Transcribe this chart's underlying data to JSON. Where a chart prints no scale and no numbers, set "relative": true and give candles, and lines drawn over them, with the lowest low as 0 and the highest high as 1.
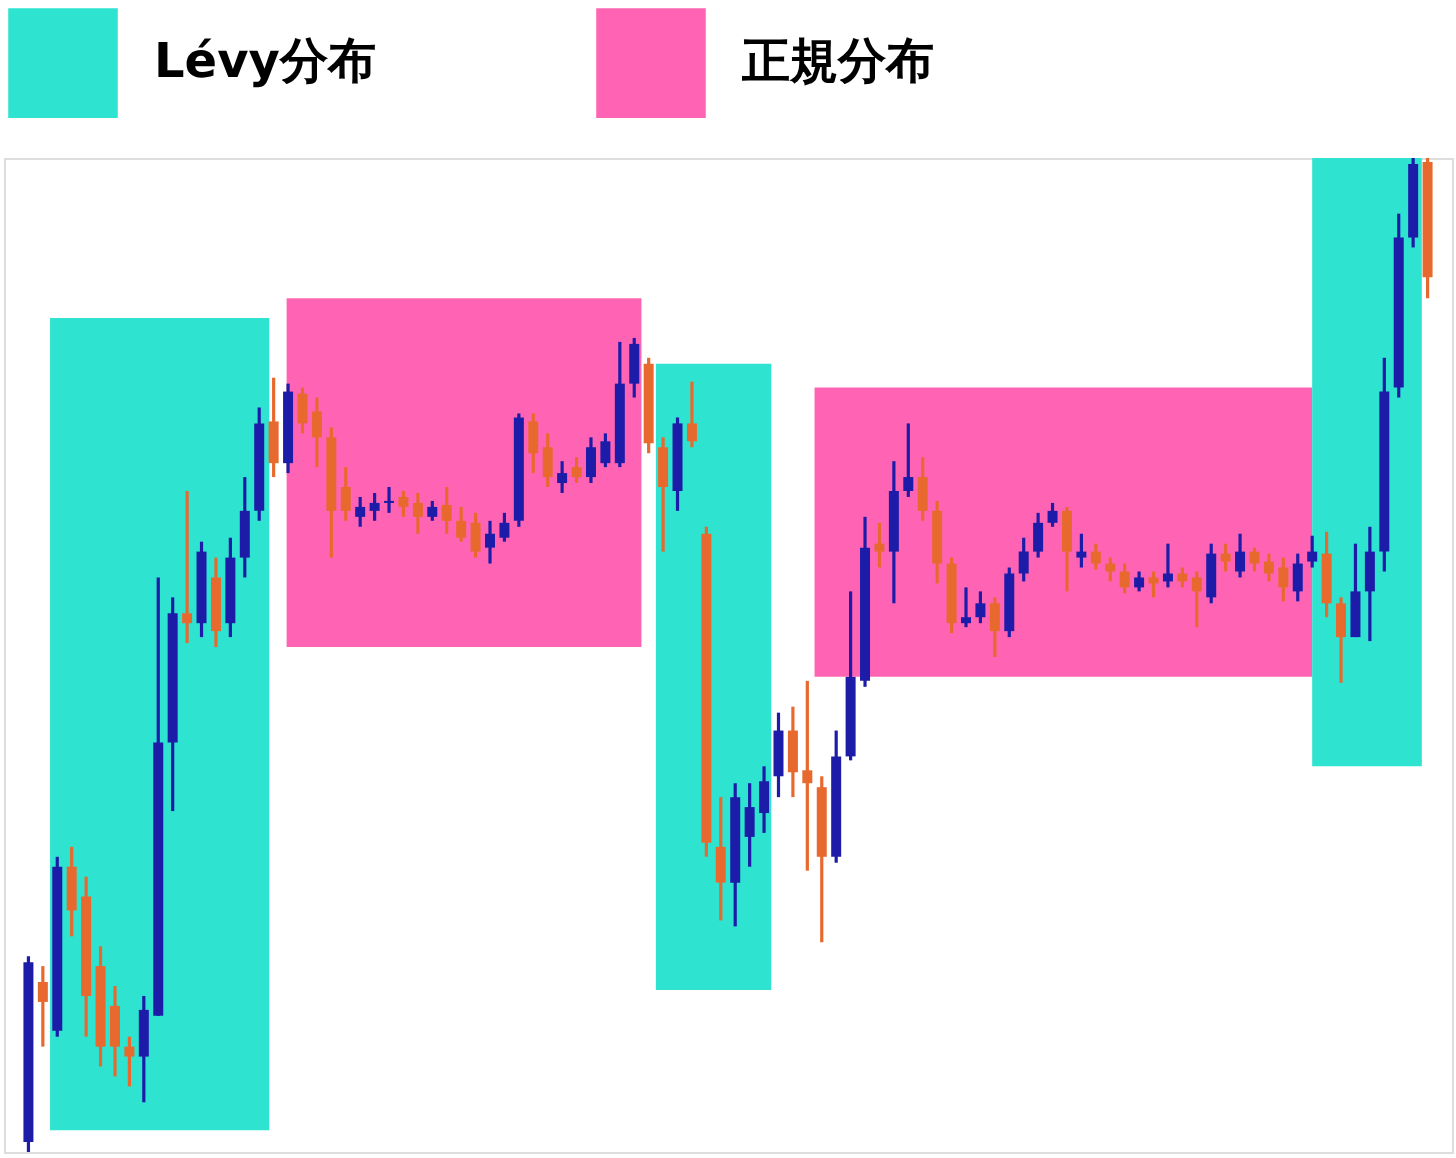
{
  "chart_data": {
    "type": "candlestick",
    "relative": true,
    "categories": [
      null,
      null,
      null,
      null,
      null,
      null,
      null,
      null,
      null,
      null,
      null,
      null,
      null,
      null,
      null,
      null,
      null,
      null,
      null,
      null,
      null,
      null,
      null,
      null,
      null,
      null,
      null,
      null,
      null,
      null,
      null,
      null,
      null,
      null,
      null,
      null,
      null,
      null,
      null,
      null,
      null,
      null,
      null,
      null,
      null,
      null,
      null,
      null,
      null,
      null,
      null,
      null,
      null,
      null,
      null,
      null,
      null,
      null,
      null,
      null,
      null,
      null,
      null,
      null,
      null,
      null,
      null,
      null,
      null,
      null,
      null,
      null,
      null,
      null,
      null,
      null,
      null,
      null,
      null,
      null,
      null,
      null,
      null,
      null,
      null,
      null,
      null,
      null,
      null,
      null,
      null,
      null,
      null,
      null,
      null,
      null,
      null,
      null
    ],
    "colors": [
      "#1c1ca8",
      "#e8692e",
      "#1c1ca8",
      "#e8692e",
      "#e8692e",
      "#e8692e",
      "#e8692e",
      "#e8692e",
      "#1c1ca8",
      "#1c1ca8",
      "#1c1ca8",
      "#e8692e",
      "#1c1ca8",
      "#e8692e",
      "#1c1ca8",
      "#1c1ca8",
      "#1c1ca8",
      "#e8692e",
      "#1c1ca8",
      "#e8692e",
      "#e8692e",
      "#e8692e",
      "#e8692e",
      "#1c1ca8",
      "#1c1ca8",
      "#1c1ca8",
      "#e8692e",
      "#e8692e",
      "#1c1ca8",
      "#e8692e",
      "#e8692e",
      "#e8692e",
      "#1c1ca8",
      "#1c1ca8",
      "#1c1ca8",
      "#e8692e",
      "#e8692e",
      "#1c1ca8",
      "#e8692e",
      "#1c1ca8",
      "#1c1ca8",
      "#1c1ca8",
      "#1c1ca8",
      "#e8692e",
      "#e8692e",
      "#1c1ca8",
      "#e8692e",
      "#e8692e",
      "#e8692e",
      "#1c1ca8",
      "#1c1ca8",
      "#1c1ca8",
      "#1c1ca8",
      "#e8692e",
      "#e8692e",
      "#e8692e",
      "#1c1ca8",
      "#1c1ca8",
      "#1c1ca8",
      "#e8692e",
      "#1c1ca8",
      "#1c1ca8",
      "#e8692e",
      "#e8692e",
      "#e8692e",
      "#1c1ca8",
      "#1c1ca8",
      "#e8692e",
      "#1c1ca8",
      "#1c1ca8",
      "#1c1ca8",
      "#1c1ca8",
      "#e8692e",
      "#1c1ca8",
      "#e8692e",
      "#e8692e",
      "#e8692e",
      "#1c1ca8",
      "#e8692e",
      "#1c1ca8",
      "#e8692e",
      "#e8692e",
      "#1c1ca8",
      "#e8692e",
      "#1c1ca8",
      "#e8692e",
      "#e8692e",
      "#e8692e",
      "#1c1ca8",
      "#1c1ca8",
      "#e8692e",
      "#e8692e",
      "#1c1ca8",
      "#1c1ca8",
      "#1c1ca8",
      "#1c1ca8",
      "#1c1ca8",
      "#e8692e"
    ],
    "annotations": [
      "Lévy分布",
      "正規分布"
    ],
    "ohlc": [
      [
        0.01,
        0.197,
        0,
        0.191
      ],
      [
        0.171,
        0.187,
        0.106,
        0.151
      ],
      [
        0.122,
        0.297,
        0.116,
        0.287
      ],
      [
        0.287,
        0.307,
        0.217,
        0.243
      ],
      [
        0.257,
        0.277,
        0.116,
        0.157
      ],
      [
        0.187,
        0.207,
        0.086,
        0.106
      ],
      [
        0.147,
        0.167,
        0.076,
        0.106
      ],
      [
        0.106,
        0.116,
        0.066,
        0.096
      ],
      [
        0.096,
        0.157,
        0.05,
        0.143
      ],
      [
        0.137,
        0.578,
        0.137,
        0.412
      ],
      [
        0.412,
        0.558,
        0.343,
        0.542
      ],
      [
        0.542,
        0.665,
        0.512,
        0.532
      ],
      [
        0.532,
        0.614,
        0.518,
        0.604
      ],
      [
        0.578,
        0.598,
        0.508,
        0.524
      ],
      [
        0.532,
        0.618,
        0.518,
        0.598
      ],
      [
        0.598,
        0.679,
        0.578,
        0.645
      ],
      [
        0.645,
        0.749,
        0.635,
        0.733
      ],
      [
        0.735,
        0.779,
        0.679,
        0.693
      ],
      [
        0.693,
        0.773,
        0.683,
        0.765
      ],
      [
        0.763,
        0.769,
        0.723,
        0.733
      ],
      [
        0.745,
        0.759,
        0.689,
        0.719
      ],
      [
        0.719,
        0.729,
        0.598,
        0.645
      ],
      [
        0.669,
        0.689,
        0.635,
        0.645
      ],
      [
        0.639,
        0.659,
        0.629,
        0.649
      ],
      [
        0.645,
        0.663,
        0.635,
        0.653
      ],
      [
        0.653,
        0.669,
        0.643,
        0.655
      ],
      [
        0.659,
        0.665,
        0.639,
        0.649
      ],
      [
        0.653,
        0.663,
        0.622,
        0.639
      ],
      [
        0.639,
        0.655,
        0.635,
        0.649
      ],
      [
        0.651,
        0.669,
        0.622,
        0.635
      ],
      [
        0.635,
        0.649,
        0.614,
        0.618
      ],
      [
        0.633,
        0.643,
        0.598,
        0.604
      ],
      [
        0.608,
        0.635,
        0.592,
        0.622
      ],
      [
        0.618,
        0.643,
        0.614,
        0.633
      ],
      [
        0.635,
        0.743,
        0.629,
        0.739
      ],
      [
        0.735,
        0.743,
        0.683,
        0.703
      ],
      [
        0.709,
        0.723,
        0.669,
        0.679
      ],
      [
        0.673,
        0.695,
        0.663,
        0.683
      ],
      [
        0.689,
        0.699,
        0.673,
        0.679
      ],
      [
        0.679,
        0.719,
        0.673,
        0.709
      ],
      [
        0.693,
        0.723,
        0.689,
        0.715
      ],
      [
        0.693,
        0.815,
        0.689,
        0.773
      ],
      [
        0.773,
        0.819,
        0.759,
        0.813
      ],
      [
        0.793,
        0.799,
        0.703,
        0.713
      ],
      [
        0.709,
        0.719,
        0.604,
        0.669
      ],
      [
        0.665,
        0.739,
        0.645,
        0.733
      ],
      [
        0.733,
        0.775,
        0.709,
        0.715
      ],
      [
        0.622,
        0.629,
        0.297,
        0.311
      ],
      [
        0.307,
        0.357,
        0.233,
        0.271
      ],
      [
        0.271,
        0.371,
        0.227,
        0.357
      ],
      [
        0.317,
        0.371,
        0.287,
        0.347
      ],
      [
        0.341,
        0.388,
        0.321,
        0.373
      ],
      [
        0.378,
        0.442,
        0.357,
        0.424
      ],
      [
        0.424,
        0.448,
        0.357,
        0.382
      ],
      [
        0.384,
        0.474,
        0.283,
        0.371
      ],
      [
        0.367,
        0.378,
        0.211,
        0.297
      ],
      [
        0.297,
        0.424,
        0.291,
        0.398
      ],
      [
        0.398,
        0.564,
        0.394,
        0.478
      ],
      [
        0.474,
        0.639,
        0.468,
        0.608
      ],
      [
        0.612,
        0.633,
        0.588,
        0.604
      ],
      [
        0.604,
        0.695,
        0.552,
        0.665
      ],
      [
        0.665,
        0.733,
        0.659,
        0.679
      ],
      [
        0.679,
        0.699,
        0.635,
        0.645
      ],
      [
        0.645,
        0.655,
        0.572,
        0.592
      ],
      [
        0.592,
        0.598,
        0.522,
        0.532
      ],
      [
        0.532,
        0.568,
        0.528,
        0.538
      ],
      [
        0.538,
        0.564,
        0.532,
        0.552
      ],
      [
        0.552,
        0.558,
        0.498,
        0.524
      ],
      [
        0.524,
        0.588,
        0.518,
        0.582
      ],
      [
        0.582,
        0.618,
        0.574,
        0.604
      ],
      [
        0.604,
        0.643,
        0.598,
        0.633
      ],
      [
        0.633,
        0.653,
        0.629,
        0.645
      ],
      [
        0.645,
        0.649,
        0.564,
        0.604
      ],
      [
        0.598,
        0.622,
        0.588,
        0.604
      ],
      [
        0.604,
        0.612,
        0.586,
        0.592
      ],
      [
        0.592,
        0.598,
        0.574,
        0.584
      ],
      [
        0.584,
        0.592,
        0.562,
        0.568
      ],
      [
        0.568,
        0.584,
        0.564,
        0.578
      ],
      [
        0.578,
        0.584,
        0.558,
        0.572
      ],
      [
        0.574,
        0.612,
        0.568,
        0.582
      ],
      [
        0.582,
        0.588,
        0.568,
        0.574
      ],
      [
        0.578,
        0.584,
        0.528,
        0.564
      ],
      [
        0.558,
        0.612,
        0.552,
        0.602
      ],
      [
        0.602,
        0.612,
        0.584,
        0.594
      ],
      [
        0.584,
        0.622,
        0.578,
        0.604
      ],
      [
        0.604,
        0.608,
        0.584,
        0.592
      ],
      [
        0.594,
        0.602,
        0.574,
        0.582
      ],
      [
        0.588,
        0.598,
        0.554,
        0.568
      ],
      [
        0.564,
        0.602,
        0.554,
        0.592
      ],
      [
        0.594,
        0.62,
        0.588,
        0.604
      ],
      [
        0.602,
        0.624,
        0.538,
        0.552
      ],
      [
        0.552,
        0.558,
        0.472,
        0.518
      ],
      [
        0.518,
        0.612,
        0.518,
        0.564
      ],
      [
        0.564,
        0.629,
        0.514,
        0.604
      ],
      [
        0.604,
        0.799,
        0.584,
        0.765
      ],
      [
        0.769,
        0.944,
        0.759,
        0.92
      ],
      [
        0.92,
        1,
        0.91,
        0.994
      ],
      [
        0.996,
        1,
        0.859,
        0.88
      ]
    ]
  }
}
